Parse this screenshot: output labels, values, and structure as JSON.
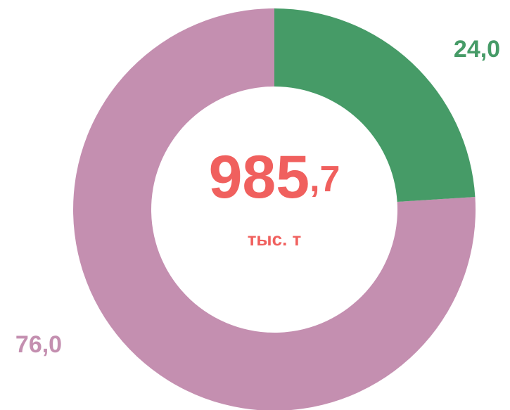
{
  "chart_data": {
    "type": "pie",
    "values": [
      24.0,
      76.0
    ],
    "value_labels": [
      "24,0",
      "76,0"
    ],
    "colors": [
      "#469b67",
      "#c48fb0"
    ],
    "center_value": "985,7",
    "center_unit": "тыс. т"
  }
}
